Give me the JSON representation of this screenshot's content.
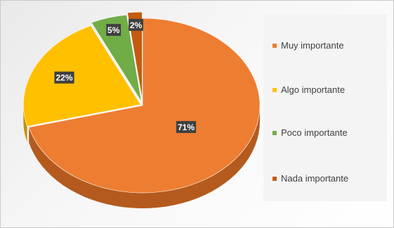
{
  "chart_data": {
    "type": "pie",
    "title": "",
    "categories": [
      "Muy importante",
      "Algo importante",
      "Poco importante",
      "Nada importante"
    ],
    "values": [
      71,
      22,
      5,
      2
    ],
    "value_labels": [
      "71%",
      "22%",
      "5%",
      "2%"
    ],
    "colors": [
      "#ED7D31",
      "#FFC000",
      "#70AD47",
      "#C55A11"
    ],
    "side_colors": [
      "#B45A1E",
      "#BF9000",
      "#4E7A31",
      "#8A3E0B"
    ],
    "style": "3d-exploded-pie",
    "legend_position": "right"
  }
}
